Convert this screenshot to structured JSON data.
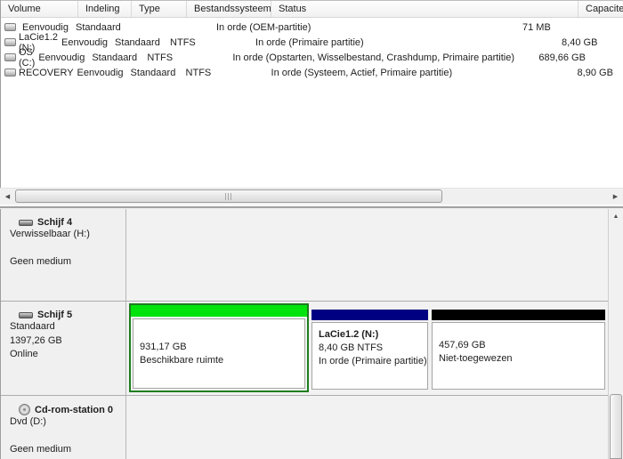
{
  "colors": {
    "free_space_bar": "#00e30b",
    "free_space_border": "#1f7d1f",
    "primary_partition_bar": "#000082",
    "unallocated_bar": "#000000"
  },
  "icons": {
    "scroll_left": "◀",
    "scroll_right": "▶",
    "scroll_up": "▲"
  },
  "volume_list": {
    "columns": [
      "Volume",
      "Indeling",
      "Type",
      "Bestandssysteem",
      "Status",
      "Capaciteit"
    ],
    "rows": [
      {
        "volume": "",
        "layout": "Eenvoudig",
        "type": "Standaard",
        "filesystem": "",
        "status": "In orde (OEM-partitie)",
        "capacity": "71 MB"
      },
      {
        "volume": "LaCie1.2 (N:)",
        "layout": "Eenvoudig",
        "type": "Standaard",
        "filesystem": "NTFS",
        "status": "In orde (Primaire partitie)",
        "capacity": "8,40 GB"
      },
      {
        "volume": "OS (C:)",
        "layout": "Eenvoudig",
        "type": "Standaard",
        "filesystem": "NTFS",
        "status": "In orde (Opstarten, Wisselbestand, Crashdump, Primaire partitie)",
        "capacity": "689,66 GB"
      },
      {
        "volume": "RECOVERY",
        "layout": "Eenvoudig",
        "type": "Standaard",
        "filesystem": "NTFS",
        "status": "In orde (Systeem, Actief, Primaire partitie)",
        "capacity": "8,90 GB"
      }
    ]
  },
  "disks": {
    "disk4": {
      "name": "Schijf 4",
      "type_line": "Verwisselbaar (H:)",
      "media_line": "Geen medium"
    },
    "disk5": {
      "name": "Schijf 5",
      "type_line": "Standaard",
      "size_line": "1397,26 GB",
      "status_line": "Online",
      "free": {
        "size": "931,17 GB",
        "label": "Beschikbare ruimte"
      },
      "lacie": {
        "title": "LaCie1.2  (N:)",
        "size": "8,40 GB NTFS",
        "status": "In orde (Primaire partitie)"
      },
      "unallocated": {
        "size": "457,69 GB",
        "label": "Niet-toegewezen"
      }
    },
    "cdrom": {
      "name": "Cd-rom-station 0",
      "type_line": "Dvd (D:)",
      "media_line": "Geen medium"
    }
  }
}
